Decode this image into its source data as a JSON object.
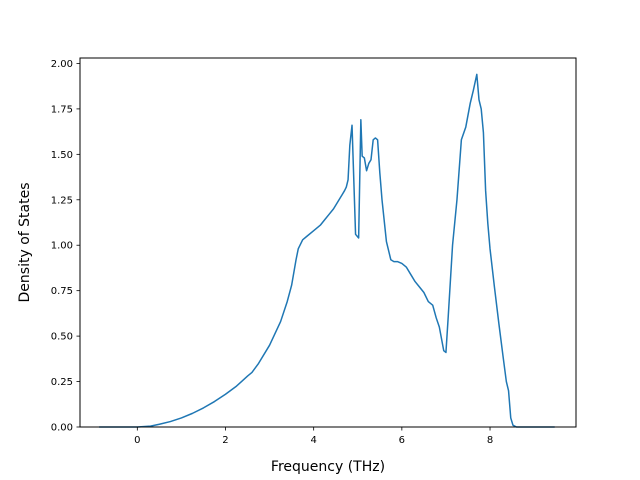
{
  "chart_data": {
    "type": "line",
    "title": "",
    "xlabel": "Frequency (THz)",
    "ylabel": "Density of States",
    "xlim": [
      -1.3,
      9.95
    ],
    "ylim": [
      0.0,
      2.03
    ],
    "x_ticks": [
      0,
      2,
      4,
      6,
      8
    ],
    "x_tick_labels": [
      "0",
      "2",
      "4",
      "6",
      "8"
    ],
    "y_ticks": [
      0.0,
      0.25,
      0.5,
      0.75,
      1.0,
      1.25,
      1.5,
      1.75,
      2.0
    ],
    "y_tick_labels": [
      "0.00",
      "0.25",
      "0.50",
      "0.75",
      "1.00",
      "1.25",
      "1.50",
      "1.75",
      "2.00"
    ],
    "grid": false,
    "legend": "none",
    "series": [
      {
        "color": "#1f77b4",
        "x": [
          -0.85,
          -0.5,
          0.0,
          0.3,
          0.5,
          0.75,
          1.0,
          1.25,
          1.5,
          1.75,
          2.0,
          2.25,
          2.5,
          2.6,
          2.75,
          3.0,
          3.25,
          3.4,
          3.5,
          3.6,
          3.65,
          3.75,
          3.85,
          4.0,
          4.15,
          4.25,
          4.35,
          4.45,
          4.55,
          4.65,
          4.7,
          4.74,
          4.78,
          4.82,
          4.87,
          4.95,
          5.02,
          5.07,
          5.1,
          5.15,
          5.2,
          5.25,
          5.3,
          5.35,
          5.4,
          5.45,
          5.5,
          5.55,
          5.65,
          5.75,
          5.82,
          5.9,
          6.0,
          6.1,
          6.2,
          6.3,
          6.4,
          6.5,
          6.6,
          6.7,
          6.78,
          6.85,
          6.95,
          7.0,
          7.05,
          7.15,
          7.25,
          7.35,
          7.45,
          7.55,
          7.62,
          7.7,
          7.75,
          7.8,
          7.85,
          7.9,
          7.95,
          8.0,
          8.1,
          8.2,
          8.3,
          8.37,
          8.42,
          8.47,
          8.52,
          8.6,
          8.7,
          9.45
        ],
        "y": [
          0.0,
          0.0,
          0.0,
          0.005,
          0.015,
          0.03,
          0.05,
          0.075,
          0.105,
          0.14,
          0.18,
          0.225,
          0.28,
          0.3,
          0.35,
          0.45,
          0.58,
          0.69,
          0.78,
          0.92,
          0.98,
          1.03,
          1.05,
          1.08,
          1.11,
          1.14,
          1.17,
          1.2,
          1.24,
          1.28,
          1.3,
          1.32,
          1.36,
          1.55,
          1.66,
          1.06,
          1.04,
          1.69,
          1.49,
          1.48,
          1.41,
          1.45,
          1.47,
          1.58,
          1.59,
          1.58,
          1.4,
          1.25,
          1.02,
          0.92,
          0.91,
          0.91,
          0.9,
          0.88,
          0.84,
          0.8,
          0.77,
          0.74,
          0.69,
          0.67,
          0.6,
          0.55,
          0.42,
          0.41,
          0.6,
          1.0,
          1.25,
          1.58,
          1.65,
          1.78,
          1.85,
          1.94,
          1.8,
          1.75,
          1.62,
          1.3,
          1.12,
          0.98,
          0.77,
          0.57,
          0.38,
          0.25,
          0.2,
          0.05,
          0.01,
          0.0,
          0.0,
          0.0
        ]
      }
    ]
  }
}
